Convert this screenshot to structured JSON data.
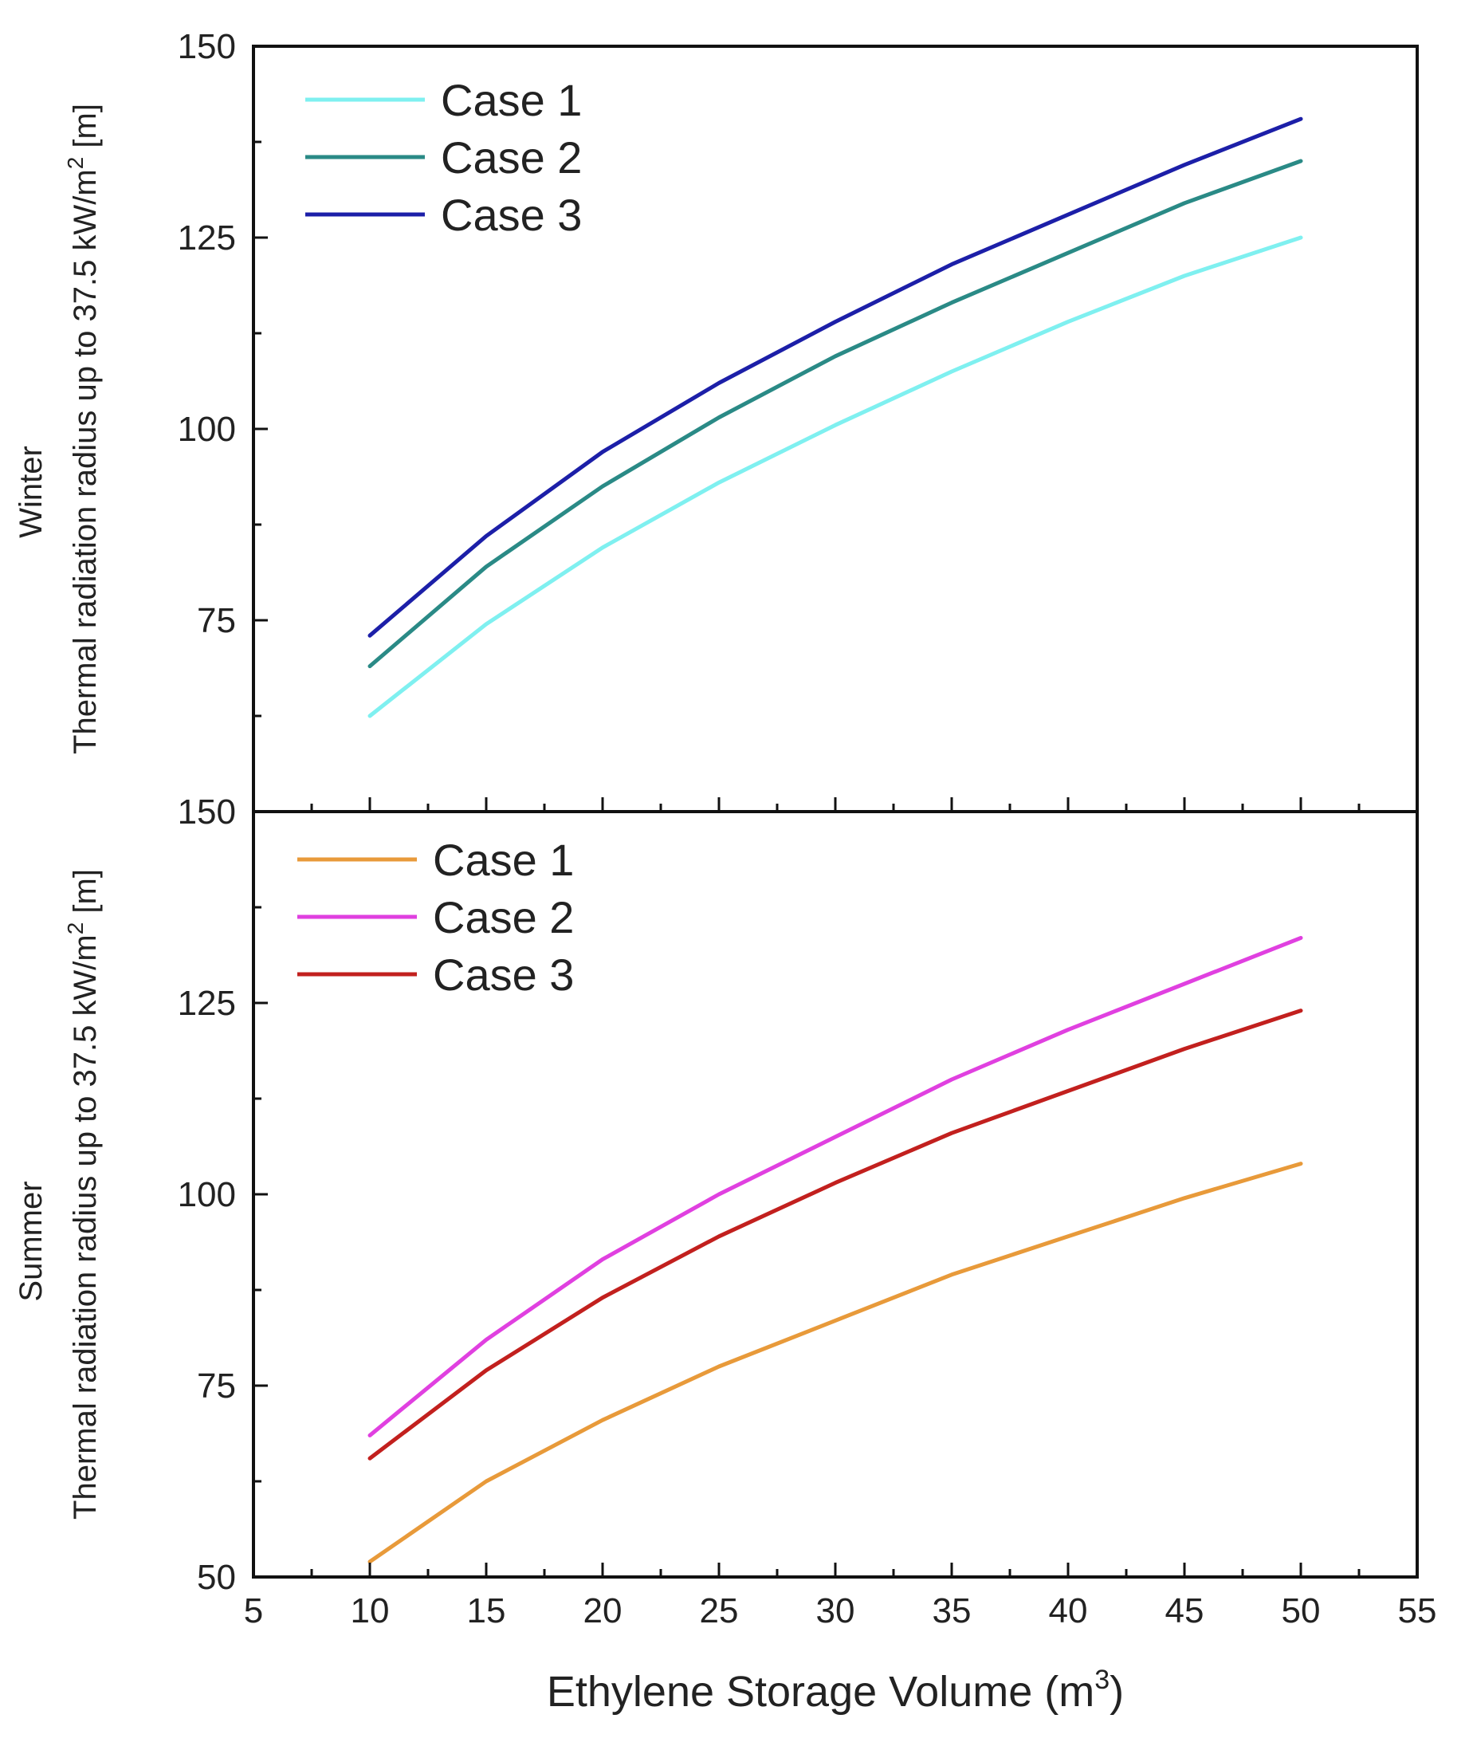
{
  "chart_data": [
    {
      "type": "line",
      "panel": "winter",
      "side_label": "Winter",
      "ylabel_prefix": "Thermal radiation radius up to 37.5 kW/m",
      "ylabel_sup": "2",
      "ylabel_suffix": " [m]",
      "xlim": [
        5,
        55
      ],
      "ylim": [
        50,
        150
      ],
      "yticks": [
        75,
        100,
        125,
        150
      ],
      "ytick_labels": [
        "75",
        "100",
        "125",
        "150"
      ],
      "bottom_tick_label": "150",
      "legend_position": "top-left",
      "x": [
        10,
        15,
        20,
        25,
        30,
        35,
        40,
        45,
        50
      ],
      "series": [
        {
          "name": "Case 1",
          "color": "#7ff0f0",
          "values": [
            62.5,
            74.5,
            84.5,
            93.0,
            100.5,
            107.5,
            114.0,
            120.0,
            125.0
          ]
        },
        {
          "name": "Case 2",
          "color": "#2a8a86",
          "values": [
            69.0,
            82.0,
            92.5,
            101.5,
            109.5,
            116.5,
            123.0,
            129.5,
            135.0
          ]
        },
        {
          "name": "Case 3",
          "color": "#1c1fa8",
          "values": [
            73.0,
            86.0,
            97.0,
            106.0,
            114.0,
            121.5,
            128.0,
            134.5,
            140.5
          ]
        }
      ]
    },
    {
      "type": "line",
      "panel": "summer",
      "side_label": "Summer",
      "ylabel_prefix": "Thermal radiation radius up to 37.5 kW/m",
      "ylabel_sup": "2",
      "ylabel_suffix": " [m]",
      "xlim": [
        5,
        55
      ],
      "ylim": [
        50,
        150
      ],
      "yticks": [
        50,
        75,
        100,
        125
      ],
      "ytick_labels": [
        "50",
        "75",
        "100",
        "125"
      ],
      "legend_position": "top-left",
      "x": [
        10,
        15,
        20,
        25,
        30,
        35,
        40,
        45,
        50
      ],
      "series": [
        {
          "name": "Case 1",
          "color": "#e89a3a",
          "values": [
            52.0,
            62.5,
            70.5,
            77.5,
            83.5,
            89.5,
            94.5,
            99.5,
            104.0
          ]
        },
        {
          "name": "Case 2",
          "color": "#e040e0",
          "values": [
            68.5,
            81.0,
            91.5,
            100.0,
            107.5,
            115.0,
            121.5,
            127.5,
            133.5
          ]
        },
        {
          "name": "Case 3",
          "color": "#c2201e",
          "values": [
            65.5,
            77.0,
            86.5,
            94.5,
            101.5,
            108.0,
            113.5,
            119.0,
            124.0
          ]
        }
      ]
    }
  ],
  "x_axis": {
    "label_prefix": "Ethylene Storage Volume (m",
    "label_sup": "3",
    "label_suffix": ")",
    "ticks": [
      5,
      10,
      15,
      20,
      25,
      30,
      35,
      40,
      45,
      50,
      55
    ],
    "tick_labels": [
      "5",
      "10",
      "15",
      "20",
      "25",
      "30",
      "35",
      "40",
      "45",
      "50",
      "55"
    ]
  }
}
